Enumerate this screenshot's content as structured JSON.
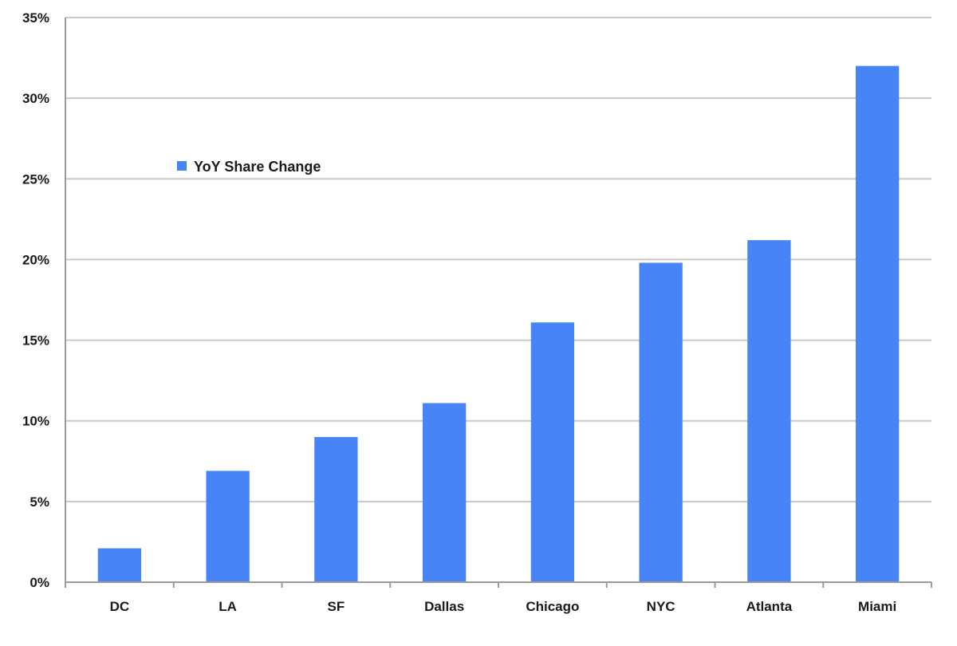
{
  "chart_data": {
    "type": "bar",
    "categories": [
      "DC",
      "LA",
      "SF",
      "Dallas",
      "Chicago",
      "NYC",
      "Atlanta",
      "Miami"
    ],
    "series": [
      {
        "name": "YoY Share Change",
        "values": [
          2.1,
          6.9,
          9.0,
          11.1,
          16.1,
          19.8,
          21.2,
          32.0
        ]
      }
    ],
    "y_ticks": [
      "0%",
      "5%",
      "10%",
      "15%",
      "20%",
      "25%",
      "30%",
      "35%"
    ],
    "ylim": [
      0,
      35
    ],
    "title": "",
    "xlabel": "",
    "ylabel": "",
    "grid": true,
    "legend_position": "upper-left-inside",
    "bar_color": "#4684f7"
  }
}
